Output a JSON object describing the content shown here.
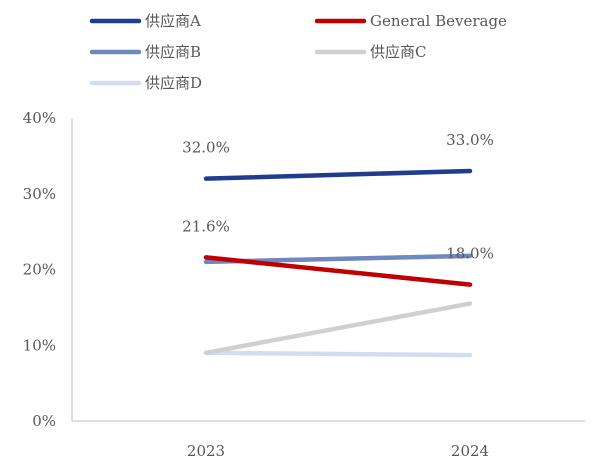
{
  "chart_data": {
    "type": "line",
    "title": "",
    "xlabel": "",
    "ylabel": "",
    "categories": [
      "2023",
      "2024"
    ],
    "ylim": [
      0,
      40
    ],
    "yticks": [
      0,
      10,
      20,
      30,
      40
    ],
    "ytick_labels": [
      "0%",
      "10%",
      "20%",
      "30%",
      "40%"
    ],
    "grid": false,
    "legend_position": "top",
    "series": [
      {
        "name": "供应商A",
        "values": [
          32.0,
          33.0
        ],
        "color": "#1F3D8F",
        "labels": [
          "32.0%",
          "33.0%"
        ]
      },
      {
        "name": "General Beverage",
        "values": [
          21.6,
          18.0
        ],
        "color": "#C00000",
        "labels": [
          "21.6%",
          "18.0%"
        ]
      },
      {
        "name": "供应商B",
        "values": [
          21.0,
          21.8
        ],
        "color": "#6F88C0",
        "labels": [
          "",
          ""
        ]
      },
      {
        "name": "供应商C",
        "values": [
          9.0,
          15.5
        ],
        "color": "#D0D0D0",
        "labels": [
          "",
          ""
        ]
      },
      {
        "name": "供应商D",
        "values": [
          9.0,
          8.7
        ],
        "color": "#D2DDF1",
        "labels": [
          "",
          ""
        ]
      }
    ]
  }
}
